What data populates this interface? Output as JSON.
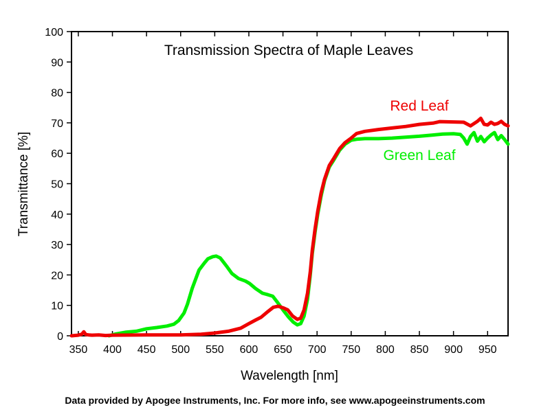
{
  "chart_data": {
    "type": "line",
    "title": "Transmission Spectra of Maple Leaves",
    "xlabel": "Wavelength [nm]",
    "ylabel": "Transmittance [%]",
    "xlim": [
      340,
      980
    ],
    "ylim": [
      0,
      100
    ],
    "grid": false,
    "xticks": [
      350,
      400,
      450,
      500,
      550,
      600,
      650,
      700,
      750,
      800,
      850,
      900,
      950
    ],
    "yticks": [
      0,
      10,
      20,
      30,
      40,
      50,
      60,
      70,
      80,
      90,
      100
    ],
    "legend_placement": "inline-right",
    "series": [
      {
        "name": "Green Leaf",
        "color": "#00ee00",
        "x": [
          395,
          405,
          420,
          435,
          450,
          465,
          480,
          490,
          497,
          505,
          510,
          517,
          527,
          535,
          540,
          547,
          552,
          558,
          567,
          575,
          585,
          595,
          601,
          610,
          620,
          628,
          635,
          642,
          650,
          658,
          665,
          671,
          676,
          681,
          686,
          690,
          693,
          697,
          701,
          706,
          711,
          718,
          725,
          733,
          741,
          750,
          758,
          770,
          790,
          810,
          830,
          850,
          870,
          884,
          900,
          910,
          915,
          920,
          925,
          930,
          935,
          940,
          945,
          950,
          955,
          960,
          965,
          970,
          975,
          980
        ],
        "y": [
          0,
          0.6,
          1.2,
          1.5,
          2.3,
          2.7,
          3.2,
          3.8,
          5.0,
          7.5,
          10.4,
          15.6,
          21.6,
          24.0,
          25.3,
          26.0,
          26.2,
          25.6,
          23.0,
          20.5,
          18.8,
          18.0,
          17.2,
          15.5,
          14.0,
          13.5,
          13.0,
          11.0,
          8.5,
          6.2,
          4.5,
          3.6,
          4.0,
          6.5,
          12.0,
          20.0,
          27.0,
          34.0,
          40.0,
          46.0,
          51.0,
          55.5,
          58.0,
          61.0,
          63.0,
          64.3,
          64.6,
          64.8,
          64.8,
          65.0,
          65.3,
          65.6,
          66.0,
          66.3,
          66.4,
          66.2,
          65.0,
          63.0,
          65.5,
          66.8,
          64.0,
          65.5,
          63.8,
          65.0,
          66.0,
          66.8,
          64.5,
          65.8,
          64.5,
          63.0
        ]
      },
      {
        "name": "Red Leaf",
        "color": "#ee0000",
        "x": [
          340,
          350,
          355,
          358,
          361,
          365,
          370,
          380,
          390,
          400,
          450,
          500,
          530,
          550,
          570,
          588,
          600,
          610,
          618,
          628,
          636,
          643,
          650,
          657,
          664,
          671,
          676,
          681,
          686,
          690,
          693,
          697,
          701,
          706,
          711,
          718,
          725,
          733,
          741,
          750,
          758,
          770,
          790,
          810,
          830,
          850,
          870,
          880,
          900,
          915,
          925,
          935,
          940,
          945,
          950,
          955,
          960,
          965,
          970,
          975,
          980
        ],
        "y": [
          0,
          0.2,
          0.5,
          1.3,
          0.4,
          0.3,
          0.2,
          0.3,
          0.1,
          0.2,
          0.3,
          0.3,
          0.5,
          0.9,
          1.5,
          2.5,
          4.0,
          5.2,
          6.1,
          8.0,
          9.4,
          9.7,
          9.2,
          8.5,
          6.5,
          5.4,
          5.8,
          8.5,
          14.0,
          21.0,
          28.0,
          35.0,
          41.0,
          47.0,
          51.5,
          56.0,
          58.5,
          61.5,
          63.5,
          65.0,
          66.5,
          67.2,
          67.8,
          68.3,
          68.8,
          69.5,
          69.9,
          70.4,
          70.3,
          70.2,
          69.0,
          70.5,
          71.5,
          69.5,
          69.3,
          70.2,
          69.5,
          69.8,
          70.5,
          69.5,
          69.0
        ]
      }
    ]
  },
  "footer": "Data provided by Apogee Instruments, Inc.  For more info, see www.apogeeinstruments.com"
}
